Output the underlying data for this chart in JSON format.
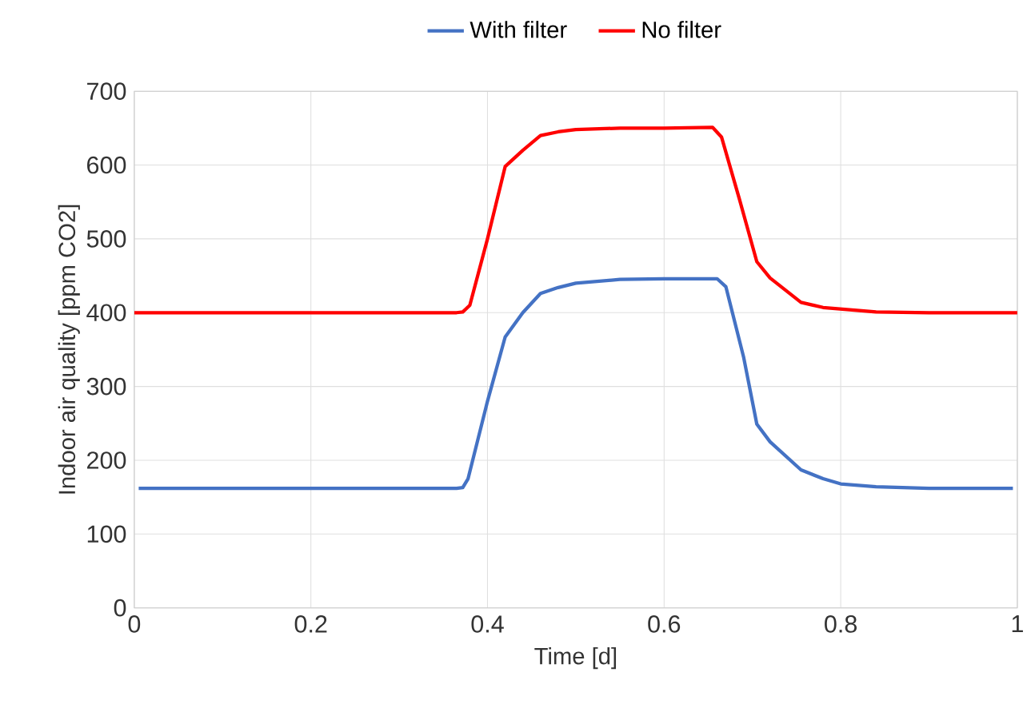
{
  "chart_data": {
    "type": "line",
    "xlabel": "Time [d]",
    "ylabel": "Indoor air quality [ppm CO2]",
    "xlim": [
      0,
      1
    ],
    "ylim": [
      0,
      700
    ],
    "xticks": [
      0,
      0.2,
      0.4,
      0.6,
      0.8,
      1
    ],
    "yticks": [
      0,
      100,
      200,
      300,
      400,
      500,
      600,
      700
    ],
    "grid": true,
    "legend": "top",
    "line_style": "solid",
    "marker": "none",
    "series": [
      {
        "name": "With filter",
        "color": "#4472c4",
        "x": [
          0.005,
          0.1,
          0.2,
          0.3,
          0.365,
          0.372,
          0.378,
          0.4,
          0.42,
          0.44,
          0.46,
          0.48,
          0.5,
          0.55,
          0.6,
          0.66,
          0.67,
          0.69,
          0.705,
          0.72,
          0.755,
          0.78,
          0.8,
          0.84,
          0.9,
          0.995
        ],
        "values": [
          162,
          162,
          162,
          162,
          162,
          163,
          175,
          280,
          367,
          400,
          426,
          434,
          440,
          445,
          446,
          446,
          435,
          340,
          249,
          225,
          187,
          175,
          168,
          164,
          162,
          162
        ]
      },
      {
        "name": "No filter",
        "color": "#ff0000",
        "x": [
          0,
          0.1,
          0.2,
          0.3,
          0.365,
          0.372,
          0.38,
          0.4,
          0.42,
          0.44,
          0.46,
          0.48,
          0.5,
          0.55,
          0.6,
          0.655,
          0.665,
          0.685,
          0.705,
          0.72,
          0.755,
          0.78,
          0.8,
          0.84,
          0.9,
          1
        ],
        "values": [
          400,
          400,
          400,
          400,
          400,
          401,
          410,
          500,
          598,
          620,
          640,
          645,
          648,
          650,
          650,
          651,
          638,
          555,
          469,
          447,
          414,
          407,
          405,
          401,
          400,
          400
        ]
      }
    ]
  }
}
